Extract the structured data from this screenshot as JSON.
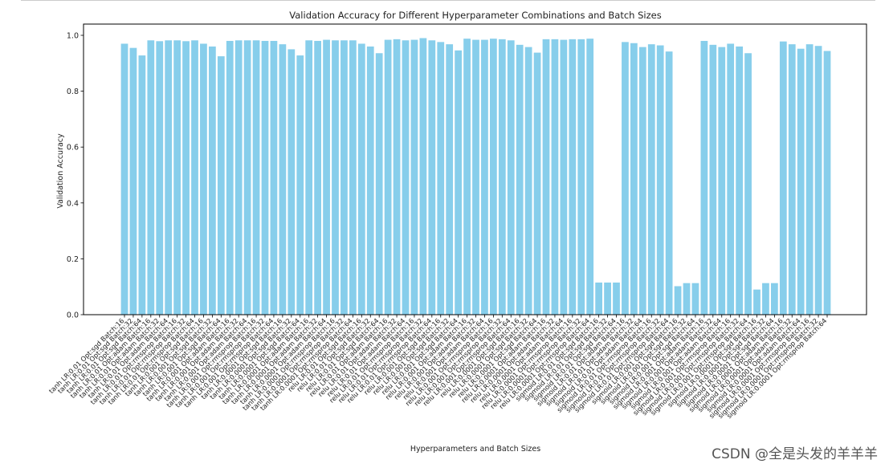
{
  "chart_data": {
    "type": "bar",
    "title": "Validation Accuracy for Different Hyperparameter Combinations and Batch Sizes",
    "xlabel": "Hyperparameters and Batch Sizes",
    "ylabel": "Validation Accuracy",
    "ylim": [
      0,
      1.0
    ],
    "yticks": [
      "0.0",
      "0.2",
      "0.4",
      "0.6",
      "0.8",
      "1.0"
    ],
    "bar_color": "#87ceeb",
    "categories": [
      "tanh LR:0.01 Opt:sgd Batch:16",
      "tanh LR:0.01 Opt:sgd Batch:32",
      "tanh LR:0.01 Opt:sgd Batch:64",
      "tanh LR:0.01 Opt:adam Batch:16",
      "tanh LR:0.01 Opt:adam Batch:32",
      "tanh LR:0.01 Opt:adam Batch:64",
      "tanh LR:0.01 Opt:rmsprop Batch:16",
      "tanh LR:0.01 Opt:rmsprop Batch:32",
      "tanh LR:0.01 Opt:rmsprop Batch:64",
      "tanh LR:0.001 Opt:sgd Batch:16",
      "tanh LR:0.001 Opt:sgd Batch:32",
      "tanh LR:0.001 Opt:sgd Batch:64",
      "tanh LR:0.001 Opt:adam Batch:16",
      "tanh LR:0.001 Opt:adam Batch:32",
      "tanh LR:0.001 Opt:adam Batch:64",
      "tanh LR:0.001 Opt:rmsprop Batch:16",
      "tanh LR:0.001 Opt:rmsprop Batch:32",
      "tanh LR:0.001 Opt:rmsprop Batch:64",
      "tanh LR:0.0001 Opt:sgd Batch:16",
      "tanh LR:0.0001 Opt:sgd Batch:32",
      "tanh LR:0.0001 Opt:sgd Batch:64",
      "tanh LR:0.0001 Opt:adam Batch:16",
      "tanh LR:0.0001 Opt:adam Batch:32",
      "tanh LR:0.0001 Opt:adam Batch:64",
      "tanh LR:0.0001 Opt:rmsprop Batch:16",
      "tanh LR:0.0001 Opt:rmsprop Batch:32",
      "tanh LR:0.0001 Opt:rmsprop Batch:64",
      "relu LR:0.01 Opt:sgd Batch:16",
      "relu LR:0.01 Opt:sgd Batch:32",
      "relu LR:0.01 Opt:sgd Batch:64",
      "relu LR:0.01 Opt:adam Batch:16",
      "relu LR:0.01 Opt:adam Batch:32",
      "relu LR:0.01 Opt:adam Batch:64",
      "relu LR:0.01 Opt:rmsprop Batch:16",
      "relu LR:0.01 Opt:rmsprop Batch:32",
      "relu LR:0.01 Opt:rmsprop Batch:64",
      "relu LR:0.001 Opt:sgd Batch:16",
      "relu LR:0.001 Opt:sgd Batch:32",
      "relu LR:0.001 Opt:sgd Batch:64",
      "relu LR:0.001 Opt:adam Batch:16",
      "relu LR:0.001 Opt:adam Batch:32",
      "relu LR:0.001 Opt:adam Batch:64",
      "relu LR:0.001 Opt:rmsprop Batch:16",
      "relu LR:0.001 Opt:rmsprop Batch:32",
      "relu LR:0.001 Opt:rmsprop Batch:64",
      "relu LR:0.0001 Opt:sgd Batch:16",
      "relu LR:0.0001 Opt:sgd Batch:32",
      "relu LR:0.0001 Opt:sgd Batch:64",
      "relu LR:0.0001 Opt:adam Batch:16",
      "relu LR:0.0001 Opt:adam Batch:32",
      "relu LR:0.0001 Opt:adam Batch:64",
      "relu LR:0.0001 Opt:rmsprop Batch:16",
      "relu LR:0.0001 Opt:rmsprop Batch:32",
      "relu LR:0.0001 Opt:rmsprop Batch:64",
      "sigmoid LR:0.01 Opt:sgd Batch:16",
      "sigmoid LR:0.01 Opt:sgd Batch:32",
      "sigmoid LR:0.01 Opt:sgd Batch:64",
      "sigmoid LR:0.01 Opt:adam Batch:16",
      "sigmoid LR:0.01 Opt:adam Batch:32",
      "sigmoid LR:0.01 Opt:adam Batch:64",
      "sigmoid LR:0.01 Opt:rmsprop Batch:16",
      "sigmoid LR:0.01 Opt:rmsprop Batch:32",
      "sigmoid LR:0.01 Opt:rmsprop Batch:64",
      "sigmoid LR:0.001 Opt:sgd Batch:16",
      "sigmoid LR:0.001 Opt:sgd Batch:32",
      "sigmoid LR:0.001 Opt:sgd Batch:64",
      "sigmoid LR:0.001 Opt:adam Batch:16",
      "sigmoid LR:0.001 Opt:adam Batch:32",
      "sigmoid LR:0.001 Opt:adam Batch:64",
      "sigmoid LR:0.001 Opt:rmsprop Batch:16",
      "sigmoid LR:0.001 Opt:rmsprop Batch:32",
      "sigmoid LR:0.001 Opt:rmsprop Batch:64",
      "sigmoid LR:0.0001 Opt:sgd Batch:16",
      "sigmoid LR:0.0001 Opt:sgd Batch:32",
      "sigmoid LR:0.0001 Opt:sgd Batch:64",
      "sigmoid LR:0.0001 Opt:adam Batch:16",
      "sigmoid LR:0.0001 Opt:adam Batch:32",
      "sigmoid LR:0.0001 Opt:adam Batch:64",
      "sigmoid LR:0.0001 Opt:rmsprop Batch:16",
      "sigmoid LR:0.0001 Opt:rmsprop Batch:32",
      "sigmoid LR:0.0001 Opt:rmsprop Batch:64"
    ],
    "values": [
      0.97,
      0.955,
      0.928,
      0.982,
      0.979,
      0.982,
      0.982,
      0.979,
      0.982,
      0.97,
      0.96,
      0.925,
      0.98,
      0.982,
      0.982,
      0.982,
      0.98,
      0.98,
      0.968,
      0.95,
      0.928,
      0.982,
      0.98,
      0.984,
      0.982,
      0.982,
      0.982,
      0.97,
      0.96,
      0.936,
      0.984,
      0.986,
      0.982,
      0.984,
      0.99,
      0.982,
      0.976,
      0.968,
      0.946,
      0.988,
      0.984,
      0.984,
      0.988,
      0.986,
      0.982,
      0.966,
      0.958,
      0.938,
      0.986,
      0.986,
      0.984,
      0.986,
      0.986,
      0.988,
      0.115,
      0.115,
      0.115,
      0.976,
      0.972,
      0.958,
      0.968,
      0.964,
      0.942,
      0.102,
      0.113,
      0.113,
      0.98,
      0.966,
      0.958,
      0.97,
      0.96,
      0.936,
      0.09,
      0.113,
      0.113,
      0.978,
      0.968,
      0.952,
      0.968,
      0.962,
      0.944
    ]
  },
  "watermark": "CSDN @全是头发的羊羊羊"
}
